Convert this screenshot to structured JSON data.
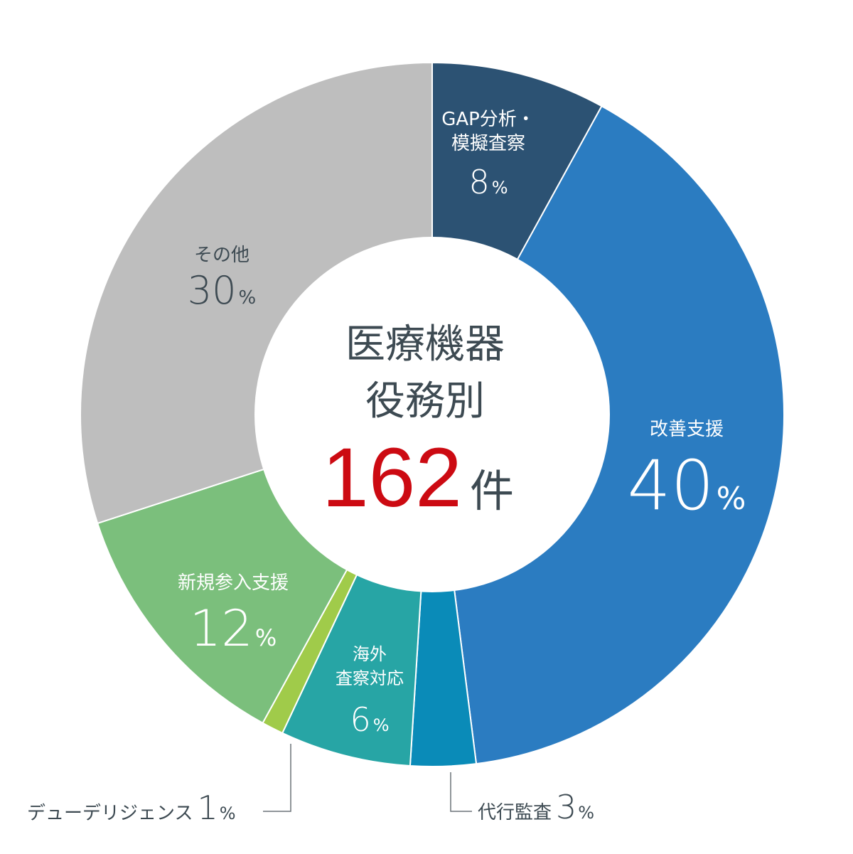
{
  "chart_data": {
    "type": "donut",
    "title_lines": [
      "医療機器",
      "役務別"
    ],
    "total": "162",
    "total_unit": "件",
    "percent_suffix": "%",
    "slices": [
      {
        "name_lines": [
          "GAP分析・",
          "模擬査察"
        ],
        "value": 8,
        "color": "#2c5273"
      },
      {
        "name_lines": [
          "改善支援"
        ],
        "value": 40,
        "color": "#2b7cc1"
      },
      {
        "name_lines": [
          "代行監査"
        ],
        "value": 3,
        "color": "#0a8bb8"
      },
      {
        "name_lines": [
          "海外",
          "査察対応"
        ],
        "value": 6,
        "color": "#27a5a5"
      },
      {
        "name_lines": [
          "デューデリジェンス"
        ],
        "value": 1,
        "color": "#a0cb4a"
      },
      {
        "name_lines": [
          "新規参入支援"
        ],
        "value": 12,
        "color": "#7bbf7c"
      },
      {
        "name_lines": [
          "その他"
        ],
        "value": 30,
        "color": "#bebebe"
      }
    ]
  }
}
